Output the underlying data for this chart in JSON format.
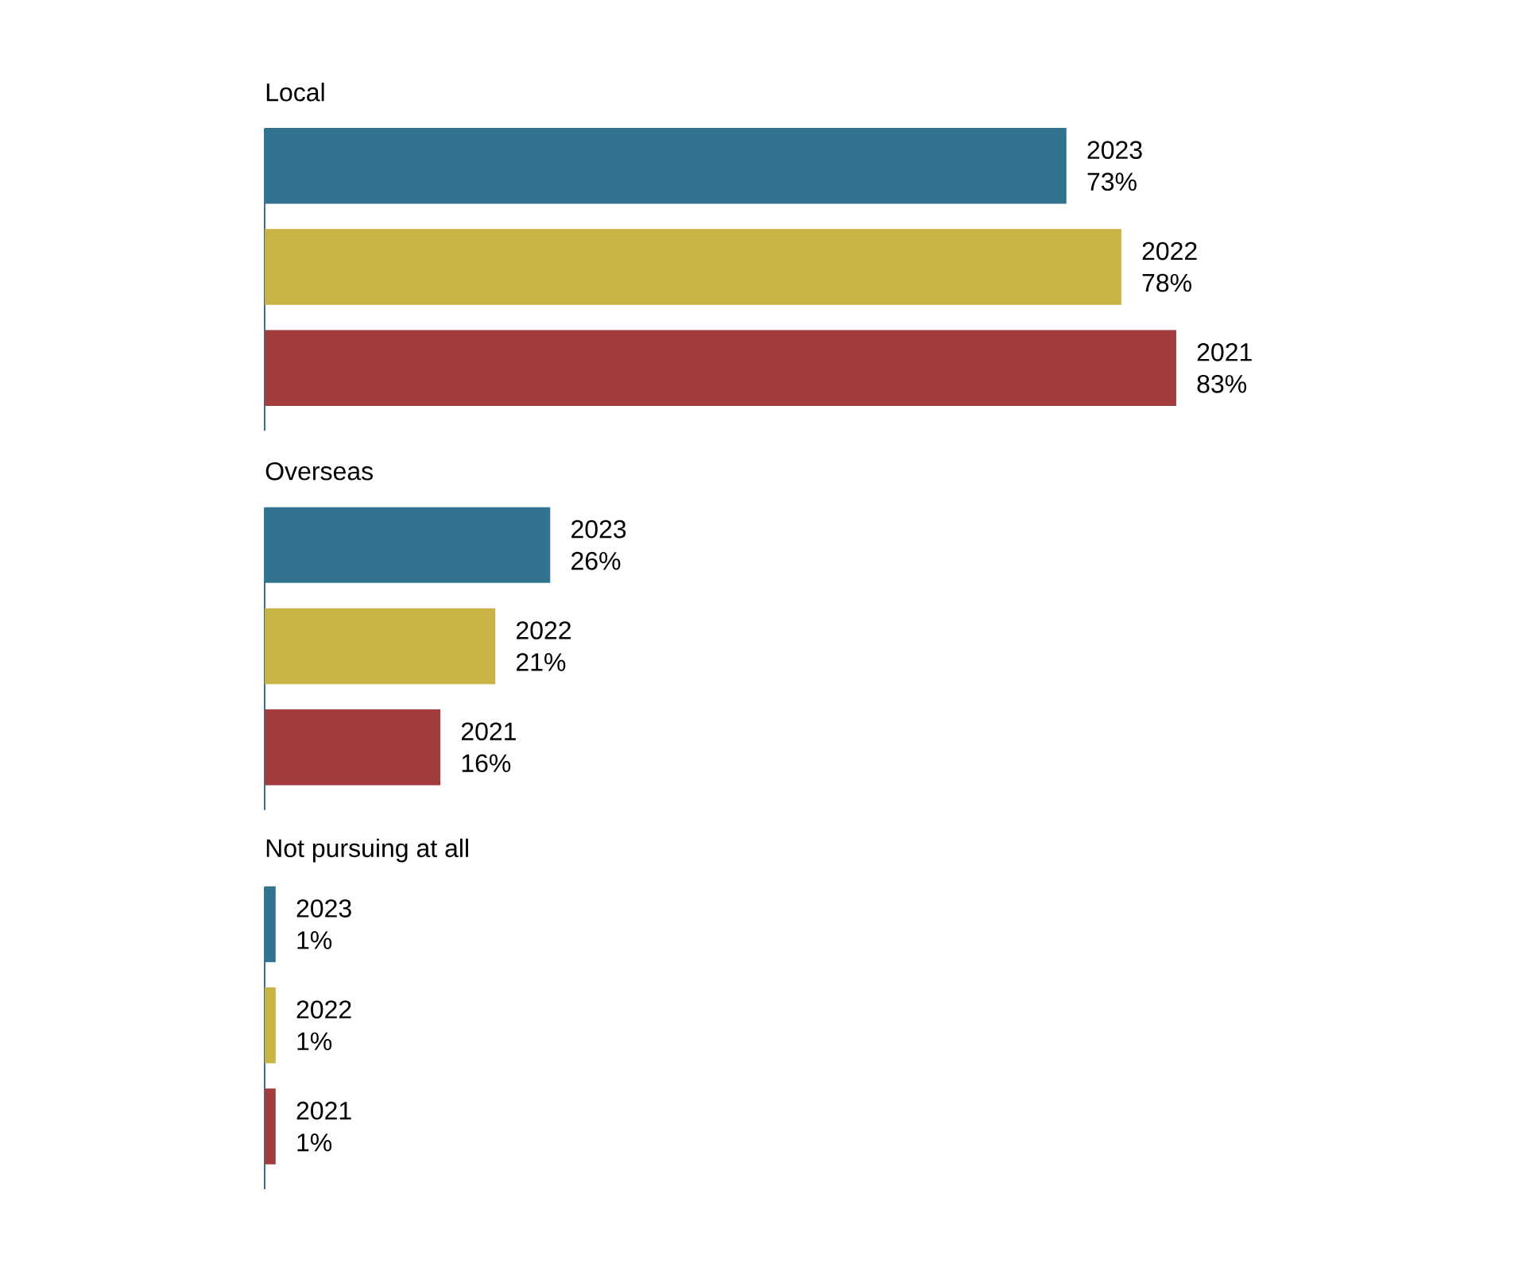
{
  "chart_data": {
    "type": "bar",
    "orientation": "horizontal",
    "categories": [
      "Local",
      "Overseas",
      "Not pursuing at all"
    ],
    "series": [
      {
        "name": "2023",
        "color": "#327490",
        "values": [
          73,
          26,
          1
        ],
        "value_labels": [
          "73%",
          "26%",
          "1%"
        ]
      },
      {
        "name": "2022",
        "color": "#c8b344",
        "values": [
          78,
          21,
          1
        ],
        "value_labels": [
          "78%",
          "21%",
          "1%"
        ]
      },
      {
        "name": "2021",
        "color": "#a33c3f",
        "values": [
          83,
          16,
          1
        ],
        "value_labels": [
          "83%",
          "16%",
          "1%"
        ]
      }
    ]
  }
}
